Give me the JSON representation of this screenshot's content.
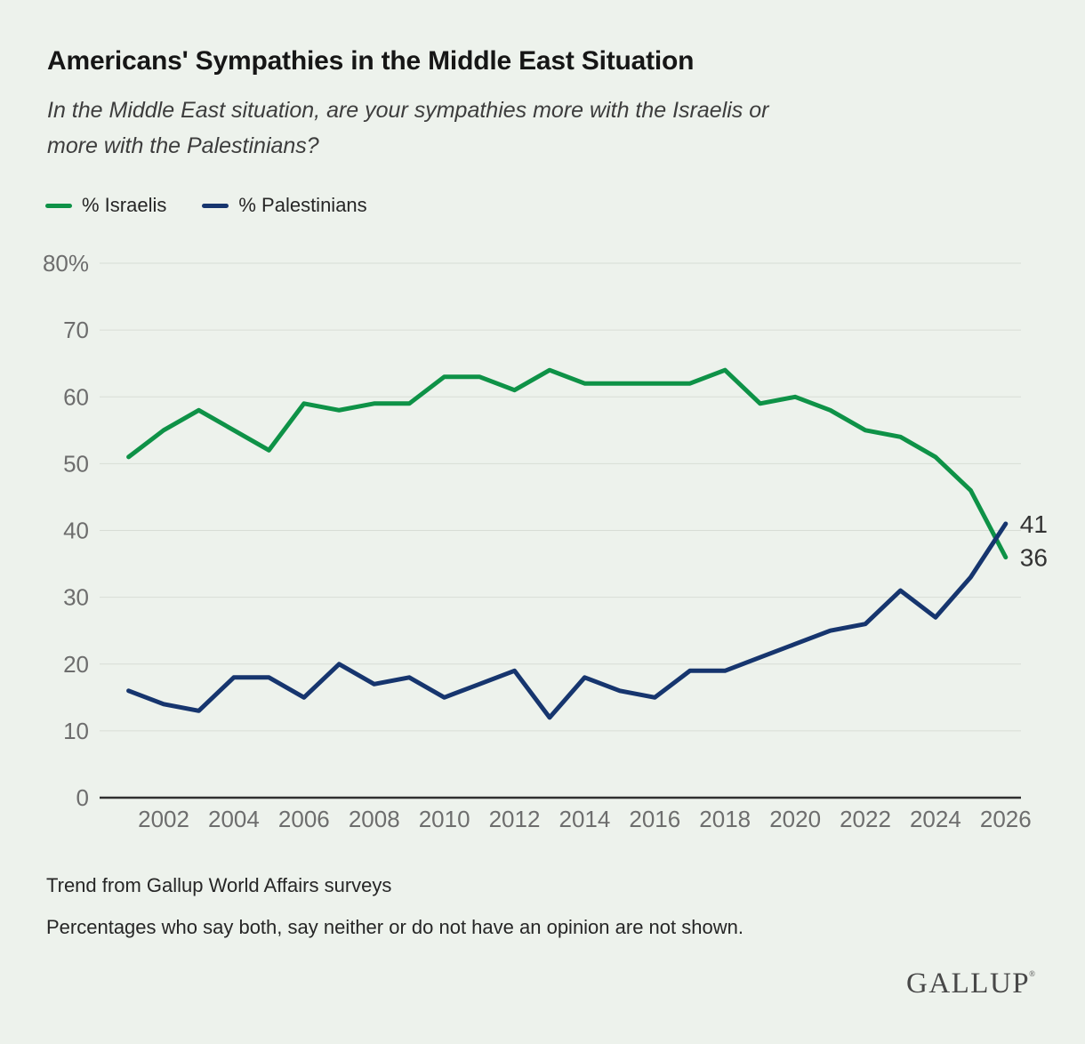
{
  "header": {
    "title": "Americans' Sympathies in the Middle East Situation",
    "subtitle_line1": "In the Middle East situation, are your sympathies more with the Israelis or",
    "subtitle_line2": "more with the Palestinians?"
  },
  "chart_data": {
    "type": "line",
    "title": "Americans' Sympathies in the Middle East Situation",
    "x": [
      2001,
      2002,
      2003,
      2004,
      2005,
      2006,
      2007,
      2008,
      2009,
      2010,
      2011,
      2012,
      2013,
      2014,
      2015,
      2016,
      2017,
      2018,
      2019,
      2020,
      2021,
      2022,
      2023,
      2024,
      2025,
      2026
    ],
    "series": [
      {
        "name": "% Israelis",
        "color": "#0e9247",
        "values": [
          51,
          55,
          58,
          55,
          52,
          59,
          58,
          59,
          59,
          63,
          63,
          61,
          64,
          62,
          62,
          62,
          62,
          64,
          59,
          60,
          58,
          55,
          54,
          51,
          46,
          36
        ],
        "end_label": "36"
      },
      {
        "name": "% Palestinians",
        "color": "#16356e",
        "values": [
          16,
          14,
          13,
          18,
          18,
          15,
          20,
          17,
          18,
          15,
          17,
          19,
          12,
          18,
          16,
          15,
          19,
          19,
          21,
          23,
          25,
          26,
          31,
          27,
          33,
          41
        ],
        "end_label": "41"
      }
    ],
    "ylim": [
      0,
      80
    ],
    "ytick_labels": [
      "0",
      "10",
      "20",
      "30",
      "40",
      "50",
      "60",
      "70",
      "80%"
    ],
    "xtick_labels": [
      "2002",
      "2004",
      "2006",
      "2008",
      "2010",
      "2012",
      "2014",
      "2016",
      "2018",
      "2020",
      "2022",
      "2024",
      "2026"
    ],
    "grid": "horizontal",
    "legend_position": "top-left",
    "colors": {
      "background": "#edf2ec",
      "gridline": "#d8ddd6",
      "axis_line": "#2f2f2f",
      "tick_label": "#6d6d6d",
      "end_label": "#333333"
    }
  },
  "footnotes": {
    "line1": "Trend from Gallup World Affairs surveys",
    "line2": "Percentages who say both, say neither or do not have an opinion are not shown."
  },
  "branding": {
    "logo": "GALLUP",
    "registered_mark": "®"
  }
}
